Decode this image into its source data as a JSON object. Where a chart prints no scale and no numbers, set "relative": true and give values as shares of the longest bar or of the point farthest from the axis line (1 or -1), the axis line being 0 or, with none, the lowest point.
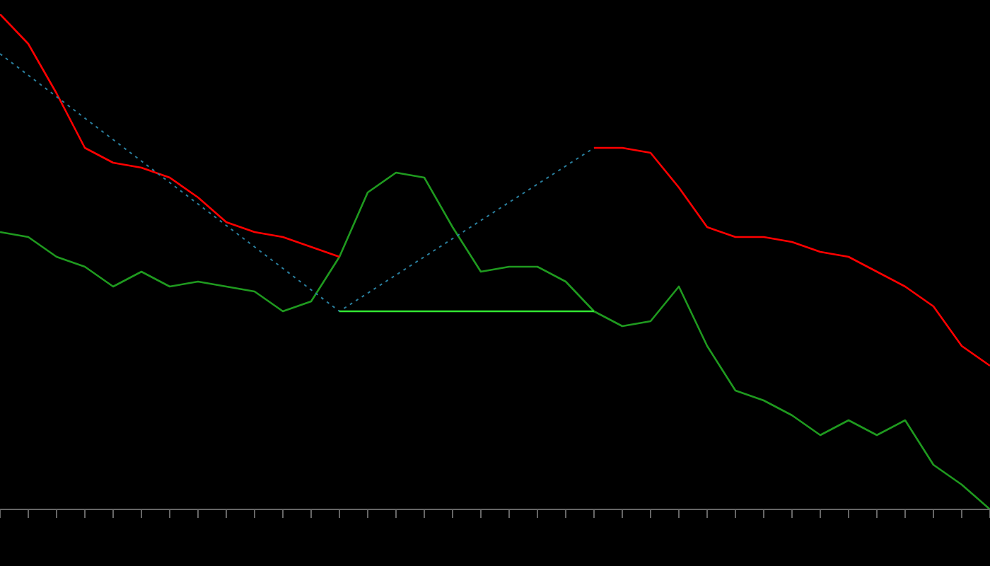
{
  "chart_data": {
    "type": "line",
    "relative": true,
    "legend": false,
    "grid": false,
    "marker": "none",
    "categories": [
      null,
      null,
      null,
      null,
      null,
      null,
      null,
      null,
      null,
      null,
      null,
      null,
      null,
      null,
      null,
      null,
      null,
      null,
      null,
      null,
      null,
      null,
      null,
      null,
      null,
      null,
      null,
      null,
      null,
      null,
      null,
      null,
      null,
      null,
      null,
      null
    ],
    "series": [
      {
        "color": "#1f9a1f",
        "line_style": "solid",
        "values": [
          0.56,
          0.55,
          0.51,
          0.49,
          0.45,
          0.48,
          0.45,
          0.46,
          0.45,
          0.44,
          0.4,
          0.42,
          0.51,
          0.64,
          0.68,
          0.67,
          0.57,
          0.48,
          0.49,
          0.49,
          0.46,
          0.4,
          0.37,
          0.38,
          0.45,
          0.33,
          0.24,
          0.22,
          0.19,
          0.15,
          0.18,
          0.15,
          0.18,
          0.09,
          0.05,
          0
        ]
      },
      {
        "color": "#ff0000",
        "line_style": "solid",
        "values": [
          1.0,
          0.94,
          0.84,
          0.73,
          0.7,
          0.69,
          0.67,
          0.63,
          0.58,
          0.56,
          0.55,
          0.53,
          0.51,
          null,
          null,
          null,
          null,
          null,
          null,
          null,
          null,
          0.73,
          0.73,
          0.72,
          0.65,
          0.57,
          0.55,
          0.55,
          0.54,
          0.52,
          0.51,
          0.48,
          0.45,
          0.41,
          0.33,
          0.29
        ]
      },
      {
        "color": "#2a7f9e",
        "line_style": "dotted",
        "values": [
          0.92,
          null,
          null,
          null,
          null,
          null,
          null,
          null,
          null,
          null,
          null,
          null,
          0.4,
          null,
          null,
          null,
          null,
          null,
          null,
          null,
          null,
          0.73,
          null,
          null,
          null,
          null,
          null,
          null,
          null,
          null,
          null,
          null,
          null,
          null,
          null,
          null
        ]
      },
      {
        "color": "#33e633",
        "line_style": "solid",
        "values": [
          null,
          null,
          null,
          null,
          null,
          null,
          null,
          null,
          null,
          null,
          null,
          null,
          0.4,
          null,
          null,
          null,
          null,
          null,
          null,
          null,
          null,
          0.4,
          null,
          null,
          null,
          null,
          null,
          null,
          null,
          null,
          null,
          null,
          null,
          null,
          null,
          null
        ]
      }
    ]
  }
}
